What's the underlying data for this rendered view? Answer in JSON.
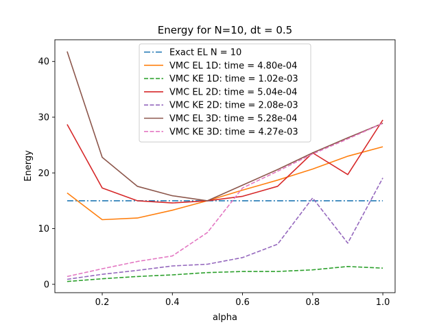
{
  "chart_data": {
    "type": "line",
    "title": "Energy for N=10, dt = 0.5",
    "xlabel": "alpha",
    "ylabel": "Energy",
    "xlim": [
      0.065,
      1.035
    ],
    "ylim": [
      -1.5,
      43.9
    ],
    "xticks": [
      0.2,
      0.4,
      0.6,
      0.8,
      1.0
    ],
    "xtick_labels": [
      "0.2",
      "0.4",
      "0.6",
      "0.8",
      "1.0"
    ],
    "yticks": [
      0,
      10,
      20,
      30,
      40
    ],
    "ytick_labels": [
      "0",
      "10",
      "20",
      "30",
      "40"
    ],
    "grid": false,
    "legend_position": "top-center",
    "x": [
      0.1,
      0.2,
      0.3,
      0.4,
      0.5,
      0.6,
      0.7,
      0.8,
      0.9,
      1.0
    ],
    "series": [
      {
        "name": "Exact EL N = 10",
        "color": "#1f77b4",
        "dash": "dashdot",
        "values": [
          15,
          15,
          15,
          15,
          15,
          15,
          15,
          15,
          15,
          15
        ]
      },
      {
        "name": "VMC EL 1D: time = 4.80e-04",
        "color": "#ff7f0e",
        "dash": "solid",
        "values": [
          16.4,
          11.6,
          11.9,
          13.3,
          15.0,
          16.9,
          18.7,
          20.7,
          23.0,
          24.7
        ]
      },
      {
        "name": "VMC KE 1D: time = 1.02e-03",
        "color": "#2ca02c",
        "dash": "dashed",
        "values": [
          0.5,
          1.0,
          1.4,
          1.7,
          2.1,
          2.3,
          2.3,
          2.6,
          3.2,
          2.9
        ]
      },
      {
        "name": "VMC EL 2D: time = 5.04e-04",
        "color": "#d62728",
        "dash": "solid",
        "values": [
          28.7,
          17.3,
          15.0,
          14.6,
          15.0,
          15.8,
          17.6,
          23.6,
          19.7,
          29.5
        ]
      },
      {
        "name": "VMC KE 2D: time = 2.08e-03",
        "color": "#9467bd",
        "dash": "dashed",
        "values": [
          0.9,
          1.8,
          2.5,
          3.3,
          3.6,
          4.8,
          7.2,
          15.5,
          7.4,
          19.1
        ]
      },
      {
        "name": "VMC EL 3D: time = 5.28e-04",
        "color": "#8c564b",
        "dash": "solid",
        "values": [
          41.8,
          22.8,
          17.6,
          15.9,
          15.0,
          17.8,
          20.6,
          23.6,
          26.3,
          28.9
        ]
      },
      {
        "name": "VMC KE 3D: time = 4.27e-03",
        "color": "#e377c2",
        "dash": "dashed",
        "values": [
          1.4,
          2.8,
          4.1,
          5.1,
          9.3,
          17.3,
          20.3,
          23.4,
          26.1,
          28.9
        ]
      }
    ]
  }
}
